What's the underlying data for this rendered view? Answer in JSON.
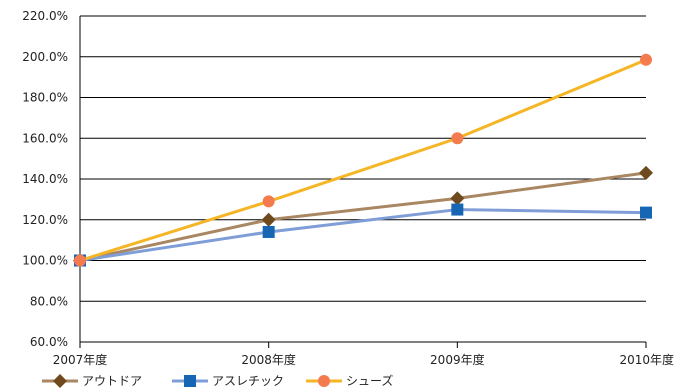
{
  "chart_data": {
    "type": "line",
    "title": "",
    "xlabel": "",
    "ylabel": "",
    "categories": [
      "2007年度",
      "2008年度",
      "2009年度",
      "2010年度"
    ],
    "ylim": [
      60,
      220
    ],
    "y_ticks": [
      "60.0%",
      "80.0%",
      "100.0%",
      "120.0%",
      "140.0%",
      "160.0%",
      "180.0%",
      "200.0%",
      "220.0%"
    ],
    "y_tick_values": [
      60,
      80,
      100,
      120,
      140,
      160,
      180,
      200,
      220
    ],
    "grid": true,
    "legend_position": "bottom-left",
    "series": [
      {
        "name": "アウトドア",
        "values": [
          100.0,
          120.0,
          130.5,
          143.0
        ],
        "color": "#A98762",
        "marker": "diamond",
        "marker_color": "#6E4A1E"
      },
      {
        "name": "アスレチック",
        "values": [
          100.0,
          114.0,
          125.0,
          123.5
        ],
        "color": "#7F9DD6",
        "marker": "square",
        "marker_color": "#1766B4"
      },
      {
        "name": "シューズ",
        "values": [
          100.0,
          129.0,
          160.0,
          198.5
        ],
        "color": "#F5B524",
        "marker": "circle",
        "marker_color": "#F47B4E"
      }
    ]
  }
}
